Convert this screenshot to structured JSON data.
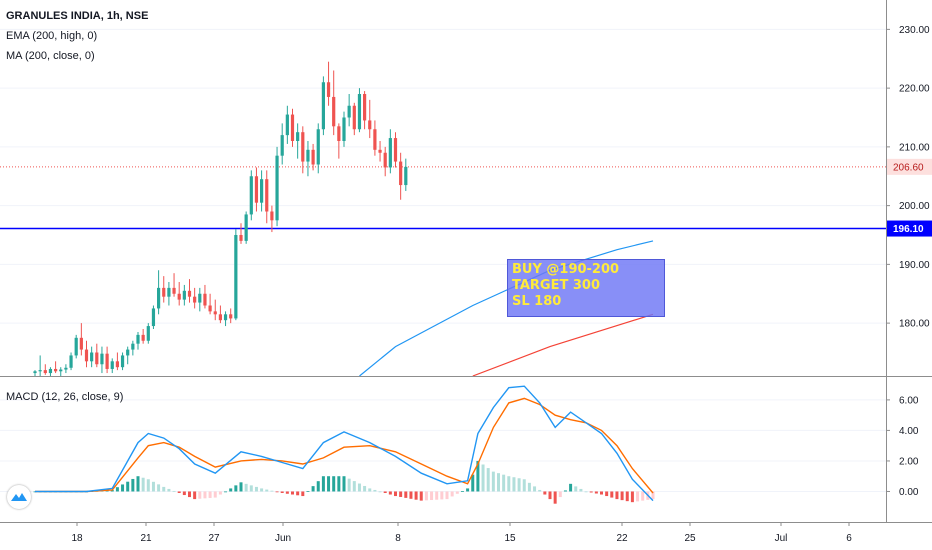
{
  "legend": {
    "title": "GRANULES INDIA, 1h, NSE",
    "ema": "EMA (200, high, 0)",
    "ma": "MA (200, close, 0)",
    "macd": "MACD (12, 26, close, 9)"
  },
  "annotation": [
    "BUY @190-200",
    "TARGET 300",
    "SL 180"
  ],
  "colors": {
    "up": "#26a69a",
    "down": "#ef5350",
    "ema": "#2196f3",
    "ma": "#f44336",
    "macd_line": "#2196f3",
    "signal_line": "#ff6d00",
    "support_line": "#0000ff",
    "last_price": "#ef5350",
    "annotation_bg": "#6e76f5",
    "annotation_text": "#ffeb3b"
  },
  "logo_icon": "tradingview-logo-icon",
  "chart_data": [
    {
      "type": "candlestick",
      "title": "GRANULES INDIA, 1h, NSE",
      "x_tick_labels": [
        "18",
        "21",
        "27",
        "Jun",
        "8",
        "15",
        "22",
        "25",
        "Jul",
        "6"
      ],
      "y_tick_labels": [
        "180.00",
        "190.00",
        "200.00",
        "210.00",
        "220.00",
        "230.00"
      ],
      "ylim": [
        171,
        235
      ],
      "price_labels": [
        {
          "name": "last",
          "value": 206.6,
          "label": "206.60"
        },
        {
          "name": "support",
          "value": 196.1,
          "label": "196.10"
        }
      ],
      "candles": [
        [
          171.5,
          172,
          171,
          171.8
        ],
        [
          171.8,
          174.5,
          171,
          172
        ],
        [
          172,
          173,
          171.2,
          171.5
        ],
        [
          171.5,
          172.5,
          171,
          172.2
        ],
        [
          172.2,
          173.5,
          171.5,
          171.8
        ],
        [
          171.8,
          172.5,
          171,
          172.1
        ],
        [
          172.1,
          173,
          171.5,
          172.4
        ],
        [
          172.4,
          175,
          172,
          174.5
        ],
        [
          174.5,
          178,
          174,
          177.5
        ],
        [
          177.5,
          180,
          174.5,
          175.5
        ],
        [
          175.5,
          177,
          172.5,
          173.5
        ],
        [
          173.5,
          176,
          172.5,
          175
        ],
        [
          175,
          176.5,
          172.5,
          173
        ],
        [
          173,
          176,
          171.5,
          174.8
        ],
        [
          174.8,
          176,
          171.5,
          172.2
        ],
        [
          172.2,
          174,
          171.5,
          173.5
        ],
        [
          173.5,
          175,
          172,
          172.5
        ],
        [
          172.5,
          175,
          172,
          174.5
        ],
        [
          174.5,
          176,
          173,
          175.5
        ],
        [
          175.5,
          177,
          174.5,
          176.5
        ],
        [
          176.5,
          178.5,
          175.5,
          178
        ],
        [
          178,
          179,
          176.5,
          177
        ],
        [
          177,
          180,
          176.5,
          179.5
        ],
        [
          179.5,
          183,
          179,
          182.5
        ],
        [
          182.5,
          189,
          181.5,
          186
        ],
        [
          186,
          188,
          183.5,
          184.5
        ],
        [
          184.5,
          187,
          183,
          186
        ],
        [
          186,
          188.5,
          184.5,
          185
        ],
        [
          185,
          187,
          183,
          184
        ],
        [
          184,
          186.5,
          183,
          185.5
        ],
        [
          185.5,
          187.5,
          183.5,
          184.5
        ],
        [
          184.5,
          186,
          182.5,
          183.5
        ],
        [
          183.5,
          186,
          182,
          185
        ],
        [
          185,
          186.5,
          182.5,
          183
        ],
        [
          183,
          185,
          181.5,
          182
        ],
        [
          182,
          184,
          180.5,
          181.5
        ],
        [
          181.5,
          183,
          180,
          180.5
        ],
        [
          180.5,
          182,
          179.5,
          181.5
        ],
        [
          181.5,
          182.5,
          180,
          180.8
        ],
        [
          180.8,
          196,
          180.5,
          195
        ],
        [
          195,
          197,
          193.5,
          194
        ],
        [
          194,
          199,
          193.5,
          198.5
        ],
        [
          198.5,
          206,
          197.5,
          205
        ],
        [
          205,
          206.5,
          199,
          200.5
        ],
        [
          200.5,
          206,
          199,
          204.5
        ],
        [
          204.5,
          206,
          197,
          199
        ],
        [
          199,
          200,
          195.5,
          197.5
        ],
        [
          197.5,
          210,
          196.5,
          208.5
        ],
        [
          208.5,
          214,
          207,
          212
        ],
        [
          212,
          217,
          210.5,
          215.5
        ],
        [
          215.5,
          216.5,
          210,
          211
        ],
        [
          211,
          214,
          208,
          212.5
        ],
        [
          212.5,
          213.5,
          205.5,
          207.5
        ],
        [
          207.5,
          211,
          205,
          209.5
        ],
        [
          209.5,
          210.5,
          206,
          207
        ],
        [
          207,
          214,
          205.5,
          213
        ],
        [
          213,
          222,
          212,
          221
        ],
        [
          221,
          224.5,
          217,
          218.5
        ],
        [
          218.5,
          223,
          212,
          213.5
        ],
        [
          213.5,
          214,
          208,
          211
        ],
        [
          211,
          216,
          210,
          215
        ],
        [
          215,
          219,
          213.5,
          217
        ],
        [
          217,
          217.5,
          212,
          213
        ],
        [
          213,
          220,
          212.5,
          219
        ],
        [
          219,
          219.5,
          213,
          214.5
        ],
        [
          214.5,
          218,
          211.5,
          213
        ],
        [
          213,
          214.5,
          208.5,
          209.5
        ],
        [
          209.5,
          211,
          207.5,
          209
        ],
        [
          209,
          210,
          205,
          206.5
        ],
        [
          206.5,
          213,
          205.5,
          211.5
        ],
        [
          211.5,
          212.5,
          206.5,
          207.5
        ],
        [
          207.5,
          209,
          201,
          203.5
        ],
        [
          203.5,
          208,
          202.5,
          206.6
        ]
      ],
      "ema_200_high": [
        [
          63,
          171
        ],
        [
          70,
          176
        ],
        [
          85,
          183
        ],
        [
          100,
          189
        ],
        [
          113,
          192.5
        ],
        [
          120,
          194
        ]
      ],
      "ma_200_close": [
        [
          85,
          171
        ],
        [
          100,
          176
        ],
        [
          120,
          181.5
        ]
      ]
    },
    {
      "type": "macd",
      "title": "MACD (12, 26, close, 9)",
      "y_tick_labels": [
        "0.00",
        "2.00",
        "4.00",
        "6.00"
      ],
      "ylim": [
        -2,
        7.5
      ],
      "x": [
        0,
        5,
        10,
        15,
        20,
        22,
        25,
        28,
        31,
        35,
        40,
        44,
        48,
        52,
        56,
        60,
        65,
        70,
        75,
        80,
        84,
        86,
        89,
        92,
        95,
        98,
        101,
        104,
        107,
        110,
        113,
        116,
        120
      ],
      "macd": [
        0,
        0,
        0,
        0.2,
        3.2,
        3.8,
        3.5,
        2.8,
        1.8,
        1.2,
        2.6,
        2.3,
        1.9,
        1.5,
        3.2,
        3.9,
        3.2,
        2.3,
        1.2,
        0.5,
        0.7,
        3.8,
        5.5,
        6.8,
        6.9,
        5.8,
        4.2,
        5.2,
        4.5,
        3.8,
        2.5,
        0.8,
        -0.6
      ],
      "signal": [
        0,
        0,
        0,
        0.1,
        2.2,
        3.0,
        3.2,
        2.9,
        2.3,
        1.6,
        2.0,
        2.1,
        2.0,
        1.8,
        2.2,
        2.9,
        3.0,
        2.6,
        1.8,
        1.0,
        0.5,
        1.8,
        4.2,
        5.8,
        6.1,
        5.7,
        5.0,
        4.7,
        4.5,
        4.0,
        3.0,
        1.5,
        -0.1
      ],
      "histogram_trend": [
        0,
        0,
        0,
        0.1,
        1.0,
        0.8,
        0.3,
        -0.1,
        -0.5,
        -0.4,
        0.6,
        0.2,
        -0.1,
        -0.3,
        1.0,
        1.0,
        0.2,
        -0.3,
        -0.6,
        -0.5,
        0.2,
        2.0,
        1.3,
        1.0,
        0.8,
        0.1,
        -0.8,
        0.5,
        0,
        -0.2,
        -0.5,
        -0.7,
        -0.5
      ]
    }
  ]
}
